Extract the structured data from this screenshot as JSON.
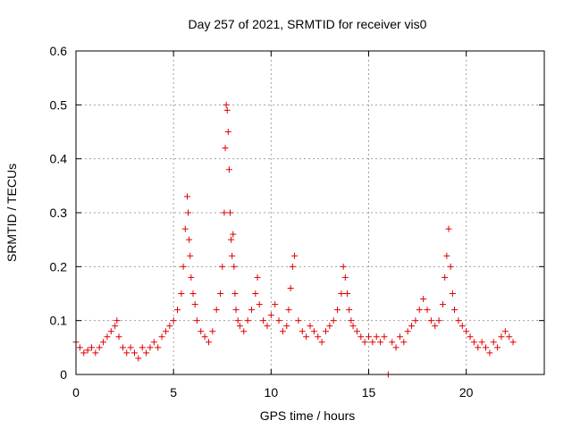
{
  "chart_data": {
    "type": "scatter",
    "title": "Day 257 of 2021, SRMTID for receiver vis0",
    "xlabel": "GPS time / hours",
    "ylabel": "SRMTID / TECUs",
    "xlim": [
      0,
      24
    ],
    "ylim": [
      0,
      0.6
    ],
    "xticks": [
      0,
      5,
      10,
      15,
      20
    ],
    "xtick_labels": [
      "0",
      "5",
      "10",
      "15",
      "20"
    ],
    "yticks": [
      0,
      0.1,
      0.2,
      0.3,
      0.4,
      0.5,
      0.6
    ],
    "ytick_labels": [
      "0",
      "0.1",
      "0.2",
      "0.3",
      "0.4",
      "0.5",
      "0.6"
    ],
    "grid": true,
    "marker": "plus",
    "color": "#e00000",
    "series": [
      {
        "name": "vis0",
        "x": [
          0.0,
          0.2,
          0.4,
          0.6,
          0.8,
          1.0,
          1.2,
          1.4,
          1.6,
          1.8,
          2.0,
          2.1,
          2.2,
          2.4,
          2.6,
          2.8,
          3.0,
          3.2,
          3.4,
          3.6,
          3.8,
          4.0,
          4.2,
          4.4,
          4.6,
          4.8,
          5.0,
          5.2,
          5.4,
          5.5,
          5.6,
          5.7,
          5.75,
          5.8,
          5.85,
          5.9,
          6.0,
          6.1,
          6.2,
          6.4,
          6.6,
          6.8,
          7.0,
          7.2,
          7.4,
          7.5,
          7.6,
          7.65,
          7.7,
          7.75,
          7.8,
          7.85,
          7.9,
          7.95,
          8.0,
          8.05,
          8.1,
          8.15,
          8.2,
          8.3,
          8.4,
          8.6,
          8.8,
          9.0,
          9.2,
          9.3,
          9.4,
          9.6,
          9.8,
          10.0,
          10.2,
          10.4,
          10.6,
          10.8,
          10.9,
          11.0,
          11.1,
          11.2,
          11.4,
          11.6,
          11.8,
          12.0,
          12.2,
          12.4,
          12.6,
          12.8,
          13.0,
          13.2,
          13.4,
          13.6,
          13.7,
          13.8,
          13.9,
          14.0,
          14.1,
          14.2,
          14.4,
          14.6,
          14.8,
          15.0,
          15.2,
          15.4,
          15.6,
          15.8,
          16.0,
          16.2,
          16.4,
          16.6,
          16.8,
          17.0,
          17.2,
          17.4,
          17.6,
          17.8,
          18.0,
          18.2,
          18.4,
          18.6,
          18.8,
          18.9,
          19.0,
          19.1,
          19.2,
          19.3,
          19.4,
          19.6,
          19.8,
          20.0,
          20.2,
          20.4,
          20.6,
          20.8,
          21.0,
          21.2,
          21.4,
          21.6,
          21.8,
          22.0,
          22.2,
          22.4
        ],
        "y": [
          0.06,
          0.05,
          0.04,
          0.045,
          0.05,
          0.04,
          0.05,
          0.06,
          0.07,
          0.08,
          0.09,
          0.1,
          0.07,
          0.05,
          0.04,
          0.05,
          0.04,
          0.03,
          0.05,
          0.04,
          0.05,
          0.06,
          0.05,
          0.07,
          0.08,
          0.09,
          0.1,
          0.12,
          0.15,
          0.2,
          0.27,
          0.33,
          0.3,
          0.25,
          0.22,
          0.18,
          0.15,
          0.13,
          0.1,
          0.08,
          0.07,
          0.06,
          0.08,
          0.12,
          0.15,
          0.2,
          0.3,
          0.42,
          0.5,
          0.49,
          0.45,
          0.38,
          0.3,
          0.25,
          0.22,
          0.26,
          0.2,
          0.15,
          0.12,
          0.1,
          0.09,
          0.08,
          0.1,
          0.12,
          0.15,
          0.18,
          0.13,
          0.1,
          0.09,
          0.11,
          0.13,
          0.1,
          0.08,
          0.09,
          0.12,
          0.16,
          0.2,
          0.22,
          0.1,
          0.08,
          0.07,
          0.09,
          0.08,
          0.07,
          0.06,
          0.08,
          0.09,
          0.1,
          0.12,
          0.15,
          0.2,
          0.18,
          0.15,
          0.12,
          0.1,
          0.09,
          0.08,
          0.07,
          0.06,
          0.07,
          0.06,
          0.07,
          0.06,
          0.07,
          0.0,
          0.06,
          0.05,
          0.07,
          0.06,
          0.08,
          0.09,
          0.1,
          0.12,
          0.14,
          0.12,
          0.1,
          0.09,
          0.1,
          0.13,
          0.18,
          0.22,
          0.27,
          0.2,
          0.15,
          0.12,
          0.1,
          0.09,
          0.08,
          0.07,
          0.06,
          0.05,
          0.06,
          0.05,
          0.04,
          0.06,
          0.05,
          0.07,
          0.08,
          0.07,
          0.06
        ]
      }
    ]
  }
}
